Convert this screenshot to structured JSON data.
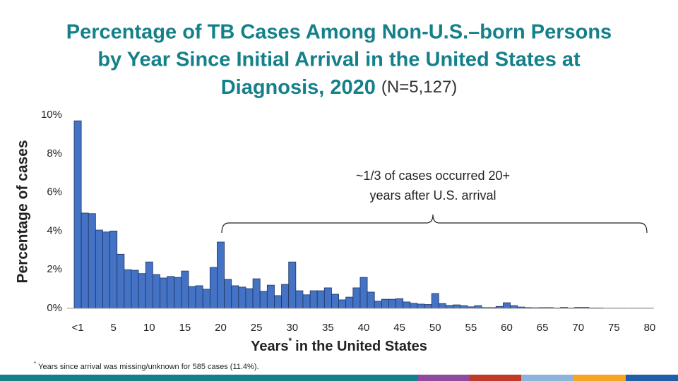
{
  "chart_data": {
    "type": "bar",
    "title": [
      "Percentage of TB Cases Among Non-U.S.–born Persons",
      "by Year Since Initial Arrival in the United States at",
      "Diagnosis, 2020"
    ],
    "title_note": "(N=5,127)",
    "ylabel": "Percentage of cases",
    "xlabel": "Years",
    "xlabel_mark": "*",
    "xlabel_rest": "in the United States",
    "annotation": [
      "~1/3 of cases occurred 20+",
      "years after U.S. arrival"
    ],
    "footnote_mark": "*",
    "footnote": "Years since arrival was missing/unknown for 585 cases (11.4%).",
    "categories": [
      "<1",
      null,
      null,
      null,
      null,
      "5",
      null,
      null,
      null,
      null,
      "10",
      null,
      null,
      null,
      null,
      "15",
      null,
      null,
      null,
      null,
      "20",
      null,
      null,
      null,
      null,
      "25",
      null,
      null,
      null,
      null,
      "30",
      null,
      null,
      null,
      null,
      "35",
      null,
      null,
      null,
      null,
      "40",
      null,
      null,
      null,
      null,
      "45",
      null,
      null,
      null,
      null,
      "50",
      null,
      null,
      null,
      null,
      "55",
      null,
      null,
      null,
      null,
      "60",
      null,
      null,
      null,
      null,
      "65",
      null,
      null,
      null,
      null,
      "70",
      null,
      null,
      null,
      null,
      "75",
      null,
      null,
      null,
      null,
      "80"
    ],
    "values": [
      9.7,
      4.93,
      4.9,
      4.05,
      3.95,
      4.0,
      2.8,
      2.0,
      1.97,
      1.8,
      2.4,
      1.75,
      1.57,
      1.65,
      1.6,
      1.93,
      1.13,
      1.17,
      0.99,
      2.12,
      3.43,
      1.5,
      1.17,
      1.1,
      1.02,
      1.53,
      0.88,
      1.2,
      0.66,
      1.24,
      2.4,
      0.91,
      0.7,
      0.91,
      0.91,
      1.06,
      0.73,
      0.44,
      0.58,
      1.06,
      1.6,
      0.84,
      0.37,
      0.47,
      0.47,
      0.5,
      0.33,
      0.26,
      0.22,
      0.2,
      0.77,
      0.25,
      0.15,
      0.18,
      0.14,
      0.08,
      0.14,
      0.04,
      0.04,
      0.1,
      0.29,
      0.14,
      0.07,
      0.04,
      0.03,
      0.04,
      0.04,
      0.02,
      0.05,
      0.02,
      0.05,
      0.05,
      0.02,
      0.02,
      0.01,
      0.01,
      0.01,
      0.01,
      0.01,
      0.01,
      0.01
    ],
    "color": "#4472c4",
    "ylim": [
      0,
      10
    ],
    "yticks": [
      {
        "value": 0,
        "label": "0%"
      },
      {
        "value": 2,
        "label": "2%"
      },
      {
        "value": 4,
        "label": "4%"
      },
      {
        "value": 6,
        "label": "6%"
      },
      {
        "value": 8,
        "label": "8%"
      },
      {
        "value": 10,
        "label": "10%"
      }
    ],
    "grid": false
  }
}
